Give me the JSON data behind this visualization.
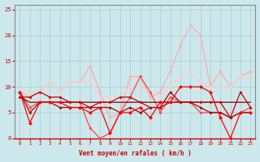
{
  "x": [
    0,
    1,
    2,
    3,
    4,
    5,
    6,
    7,
    8,
    9,
    10,
    11,
    12,
    13,
    14,
    15,
    16,
    17,
    18,
    19,
    20,
    21,
    22,
    23
  ],
  "line_dark1": [
    9,
    3,
    7,
    7,
    7,
    6,
    6,
    5,
    6,
    1,
    5,
    5,
    6,
    4,
    7,
    7,
    10,
    10,
    10,
    9,
    4,
    0,
    5,
    5
  ],
  "line_dark2": [
    8,
    8,
    9,
    8,
    8,
    7,
    7,
    6,
    7,
    7,
    8,
    8,
    7,
    6,
    6,
    7,
    7,
    7,
    7,
    7,
    7,
    4,
    9,
    6
  ],
  "line_dark3": [
    9,
    5,
    7,
    7,
    6,
    6,
    6,
    6,
    6,
    6,
    5,
    6,
    5,
    6,
    6,
    9,
    7,
    7,
    6,
    5,
    5,
    4,
    5,
    5
  ],
  "line_dark4": [
    8,
    7,
    7,
    7,
    7,
    7,
    7,
    7,
    7,
    7,
    7,
    7,
    7,
    7,
    7,
    7,
    7,
    7,
    7,
    7,
    7,
    7,
    7,
    7
  ],
  "line_med1": [
    9,
    6,
    7,
    7,
    7,
    7,
    7,
    2,
    0,
    1,
    5,
    8,
    12,
    9,
    5,
    8,
    7,
    7,
    5,
    5,
    5,
    4,
    5,
    6
  ],
  "line_light1": [
    9,
    8,
    9,
    11,
    9,
    11,
    11,
    14,
    9,
    4,
    5,
    12,
    12,
    8,
    9,
    13,
    18,
    22,
    20,
    10,
    13,
    10,
    12,
    13
  ],
  "line_light2": [
    9,
    9,
    9,
    11,
    9,
    11,
    11,
    11,
    8,
    8,
    8,
    10,
    10,
    9,
    8,
    10,
    12,
    13,
    11,
    10,
    10,
    10,
    12,
    12
  ],
  "bg_color": "#cce8ec",
  "grid_color": "#aacccc",
  "xlabel": "Vent moyen/en rafales ( km/h )",
  "ylim": [
    0,
    26
  ],
  "xlim": [
    -0.5,
    23.5
  ]
}
